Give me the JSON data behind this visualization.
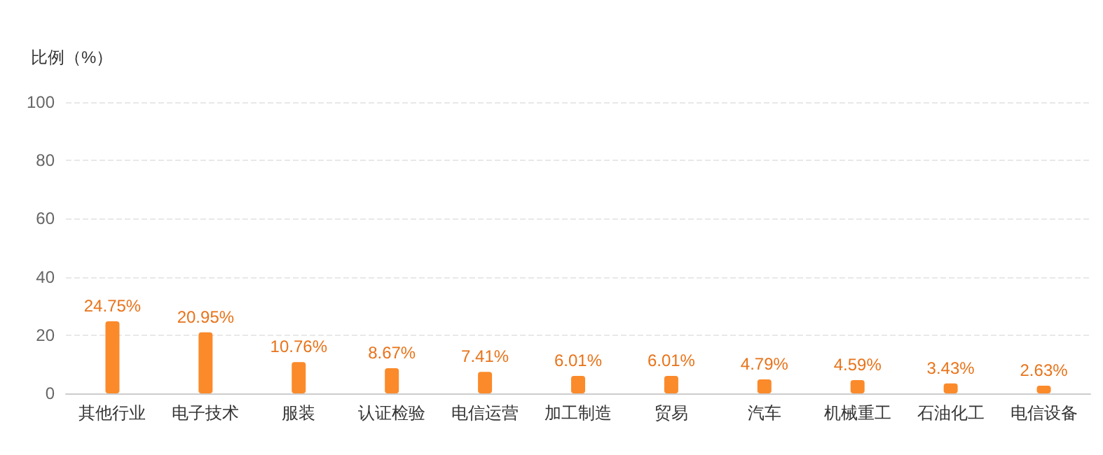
{
  "chart_data": {
    "type": "bar",
    "ylabel": "比例（%）",
    "categories": [
      "其他行业",
      "电子技术",
      "服装",
      "认证检验",
      "电信运营",
      "加工制造",
      "贸易",
      "汽车",
      "机械重工",
      "石油化工",
      "电信设备"
    ],
    "series": [
      {
        "color": "#fb8a2a",
        "values": [
          24.75,
          20.95,
          10.76,
          8.67,
          7.41,
          6.01,
          6.01,
          4.79,
          4.59,
          3.43,
          2.63
        ],
        "value_labels": [
          "24.75%",
          "20.95%",
          "10.76%",
          "8.67%",
          "7.41%",
          "6.01%",
          "6.01%",
          "4.79%",
          "4.59%",
          "3.43%",
          "2.63%"
        ]
      }
    ],
    "ylim": [
      0,
      100
    ],
    "yticks": [
      0,
      20,
      40,
      60,
      80,
      100
    ],
    "grid": "y"
  }
}
